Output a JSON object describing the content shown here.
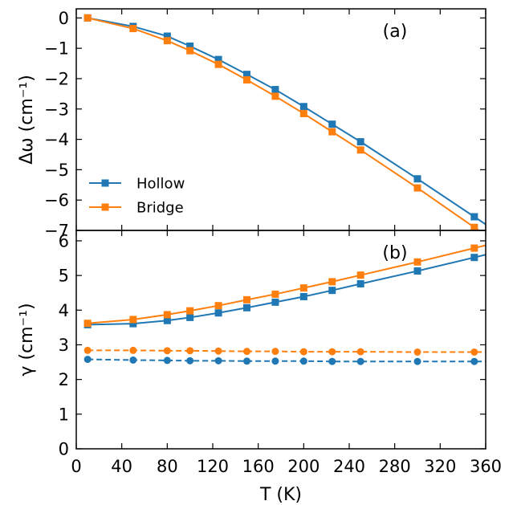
{
  "chart_data": [
    {
      "type": "line",
      "panel_label": "(a)",
      "ylabel": "Δω (cm⁻¹)",
      "xlabel": "",
      "xlim": [
        0,
        360
      ],
      "ylim": [
        -7,
        0.3
      ],
      "x_ticks": [
        0,
        40,
        80,
        120,
        160,
        200,
        240,
        280,
        320,
        360
      ],
      "y_ticks": [
        0,
        -1,
        -2,
        -3,
        -4,
        -5,
        -6,
        -7
      ],
      "y_tick_labels": [
        "0",
        "−1",
        "−2",
        "−3",
        "−4",
        "−5",
        "−6",
        "−7"
      ],
      "legend": "lower-left",
      "grid": false,
      "series": [
        {
          "name": "Hollow",
          "color": "#1f77b4",
          "marker": "square",
          "style": "solid",
          "x": [
            10,
            50,
            80,
            100,
            125,
            150,
            175,
            200,
            225,
            250,
            300,
            350,
            360
          ],
          "y": [
            0.0,
            -0.28,
            -0.6,
            -0.93,
            -1.37,
            -1.86,
            -2.36,
            -2.92,
            -3.5,
            -4.08,
            -5.3,
            -6.55,
            -6.8
          ]
        },
        {
          "name": "Bridge",
          "color": "#ff7f0e",
          "marker": "square",
          "style": "solid",
          "x": [
            10,
            50,
            80,
            100,
            125,
            150,
            175,
            200,
            225,
            250,
            300,
            350,
            360
          ],
          "y": [
            0.0,
            -0.35,
            -0.75,
            -1.08,
            -1.53,
            -2.04,
            -2.58,
            -3.15,
            -3.75,
            -4.35,
            -5.6,
            -6.9,
            -7.15
          ]
        }
      ]
    },
    {
      "type": "line",
      "panel_label": "(b)",
      "ylabel": "γ (cm⁻¹)",
      "xlabel": "T (K)",
      "xlim": [
        0,
        360
      ],
      "ylim": [
        0,
        6.3
      ],
      "x_ticks": [
        0,
        40,
        80,
        120,
        160,
        200,
        240,
        280,
        320,
        360
      ],
      "x_tick_labels": [
        "0",
        "40",
        "80",
        "120",
        "160",
        "200",
        "240",
        "280",
        "320",
        "360"
      ],
      "y_ticks": [
        0,
        1,
        2,
        3,
        4,
        5,
        6
      ],
      "y_tick_labels": [
        "0",
        "1",
        "2",
        "3",
        "4",
        "5",
        "6"
      ],
      "grid": false,
      "series": [
        {
          "color": "#1f77b4",
          "marker": "square",
          "style": "solid",
          "x": [
            10,
            50,
            80,
            100,
            125,
            150,
            175,
            200,
            225,
            250,
            300,
            350,
            360
          ],
          "y": [
            3.58,
            3.61,
            3.7,
            3.79,
            3.92,
            4.07,
            4.23,
            4.39,
            4.57,
            4.76,
            5.13,
            5.52,
            5.6
          ]
        },
        {
          "color": "#ff7f0e",
          "marker": "square",
          "style": "solid",
          "x": [
            10,
            50,
            80,
            100,
            125,
            150,
            175,
            200,
            225,
            250,
            300,
            350,
            360
          ],
          "y": [
            3.62,
            3.73,
            3.87,
            3.98,
            4.13,
            4.3,
            4.46,
            4.64,
            4.82,
            5.01,
            5.39,
            5.79,
            5.87
          ]
        },
        {
          "color": "#1f77b4",
          "marker": "circle",
          "style": "dashed",
          "x": [
            10,
            50,
            80,
            100,
            125,
            150,
            175,
            200,
            225,
            250,
            300,
            350,
            360
          ],
          "y": [
            2.58,
            2.56,
            2.55,
            2.54,
            2.54,
            2.53,
            2.53,
            2.53,
            2.52,
            2.52,
            2.52,
            2.52,
            2.52
          ]
        },
        {
          "color": "#ff7f0e",
          "marker": "circle",
          "style": "dashed",
          "x": [
            10,
            50,
            80,
            100,
            125,
            150,
            175,
            200,
            225,
            250,
            300,
            350,
            360
          ],
          "y": [
            2.84,
            2.84,
            2.83,
            2.83,
            2.82,
            2.81,
            2.81,
            2.8,
            2.8,
            2.8,
            2.79,
            2.79,
            2.79
          ]
        }
      ]
    }
  ]
}
